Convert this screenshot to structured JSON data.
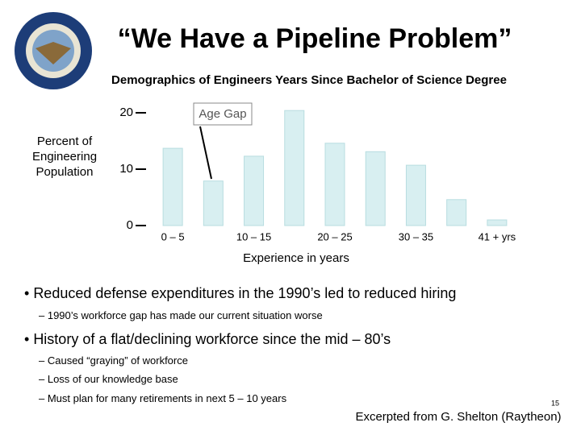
{
  "chart_data": {
    "type": "bar",
    "title": "“We Have a Pipeline Problem”",
    "subtitle": "Demographics of Engineers Years Since Bachelor of Science Degree",
    "ylabel": "Percent of Engineering Population",
    "xlabel": "Experience in years",
    "annotation": "Age Gap",
    "categories": [
      "0 – 5",
      null,
      "10 – 15",
      null,
      "20 – 25",
      null,
      "30 – 35",
      null,
      "41 + yrs"
    ],
    "values": [
      13.7,
      7.9,
      12.3,
      20.4,
      14.6,
      13.1,
      10.7,
      4.6,
      1.0
    ],
    "color": "#d8eff1",
    "ylim": [
      0,
      20
    ],
    "yticks": [
      0,
      10,
      20
    ],
    "grid": false
  },
  "bullets": [
    {
      "text": "Reduced defense expenditures in the 1990’s led to reduced hiring",
      "subs": [
        "1990’s workforce gap has made our current situation worse"
      ]
    },
    {
      "text": "History of a flat/declining workforce since the mid – 80’s",
      "subs": [
        "Caused “graying” of workforce",
        "Loss of our knowledge base",
        "Must plan for many retirements in next 5 – 10 years"
      ]
    }
  ],
  "page_number": "15",
  "footer": "Excerpted from G. Shelton (Raytheon)"
}
